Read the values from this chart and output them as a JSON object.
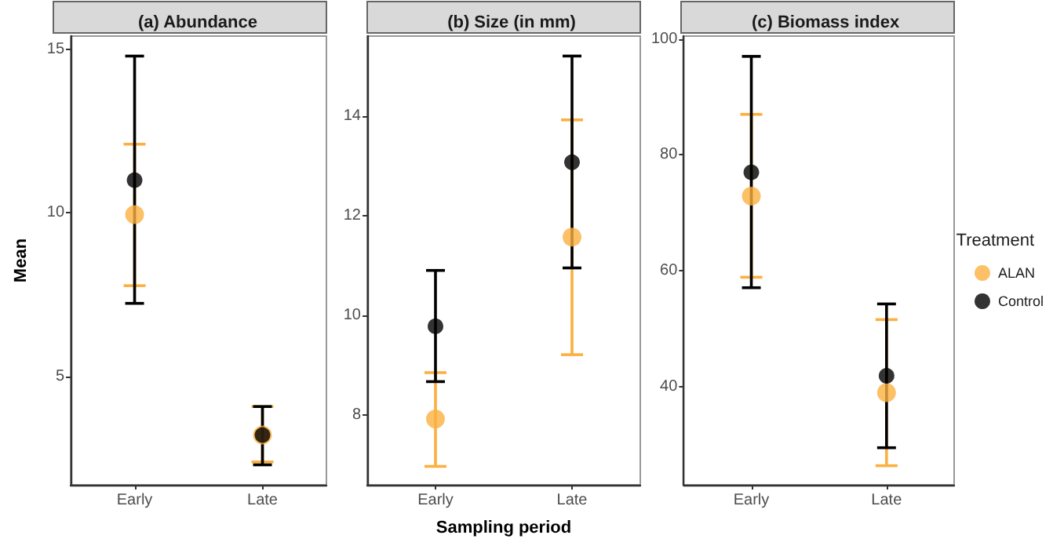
{
  "chart_data": [
    {
      "type": "scatter",
      "title": "(a) Abundance",
      "ylabel": "Mean",
      "categories": [
        "Early",
        "Late"
      ],
      "ylim": [
        1.7,
        15.4
      ],
      "yticks": [
        5,
        10,
        15
      ],
      "grid": false,
      "legend": false,
      "marker": "circle",
      "series": [
        {
          "color": "#fbb040",
          "values": [
            9.95,
            3.22
          ],
          "errors": [
            [
              7.78,
              12.1
            ],
            [
              2.4,
              4.09
            ]
          ]
        },
        {
          "color": "#000000",
          "values": [
            11.0,
            3.22
          ],
          "errors": [
            [
              7.24,
              14.79
            ],
            [
              2.31,
              4.09
            ]
          ]
        }
      ]
    },
    {
      "type": "scatter",
      "title": "(b) Size (in mm)",
      "xlabel": "Sampling period",
      "categories": [
        "Early",
        "Late"
      ],
      "ylim": [
        6.6,
        15.6
      ],
      "yticks": [
        8,
        10,
        12,
        14
      ],
      "grid": false,
      "legend": false,
      "marker": "circle",
      "series": [
        {
          "color": "#fbb040",
          "values": [
            7.92,
            11.57
          ],
          "errors": [
            [
              6.97,
              8.85
            ],
            [
              9.21,
              13.92
            ]
          ]
        },
        {
          "color": "#000000",
          "values": [
            9.78,
            13.07
          ],
          "errors": [
            [
              8.67,
              10.9
            ],
            [
              10.95,
              15.2
            ]
          ]
        }
      ]
    },
    {
      "type": "scatter",
      "title": "(c) Biomass index",
      "legend_title": "Treatment",
      "categories": [
        "Early",
        "Late"
      ],
      "ylim": [
        23.1,
        100.5
      ],
      "yticks": [
        40,
        60,
        80,
        100
      ],
      "grid": false,
      "legend": "right",
      "marker": "circle",
      "series": [
        {
          "name": "ALAN",
          "color": "#fbb040",
          "values": [
            72.9,
            39.0
          ],
          "errors": [
            [
              58.9,
              87.0
            ],
            [
              26.4,
              51.6
            ]
          ]
        },
        {
          "name": "Control",
          "color": "#000000",
          "values": [
            77.0,
            41.9
          ],
          "errors": [
            [
              57.1,
              97.0
            ],
            [
              29.5,
              54.3
            ]
          ]
        }
      ]
    }
  ]
}
